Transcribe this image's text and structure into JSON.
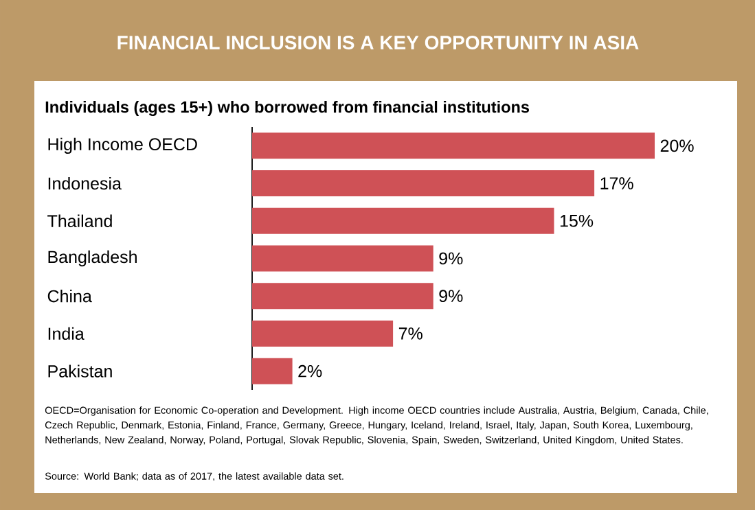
{
  "chart_data": {
    "type": "bar",
    "orientation": "horizontal",
    "title": "FINANCIAL INCLUSION IS A KEY OPPORTUNITY IN ASIA",
    "subtitle": "Individuals (ages 15+) who borrowed from financial institutions",
    "categories": [
      "High Income OECD",
      "Indonesia",
      "Thailand",
      "Bangladesh",
      "China",
      "India",
      "Pakistan"
    ],
    "values": [
      20,
      17,
      15,
      9,
      9,
      7,
      2
    ],
    "value_labels": [
      "20%",
      "17%",
      "15%",
      "9%",
      "9%",
      "7%",
      "2%"
    ],
    "color": "#cf5156",
    "annotations": [
      "OECD=Organisation for Economic Co-operation and Development. High income OECD countries include Australia, Austria, Belgium, Canada, Chile, Czech Republic, Denmark, Estonia, Finland, France, Germany, Greece, Hungary, Iceland, Ireland, Israel, Italy, Japan, South Korea, Luxembourg, Netherlands, New Zealand, Norway, Poland, Portugal, Slovak Republic, Slovenia, Spain, Sweden, Switzerland, United Kingdom, United States.",
      "Source: World Bank; data as of 2017, the latest available data set."
    ]
  }
}
